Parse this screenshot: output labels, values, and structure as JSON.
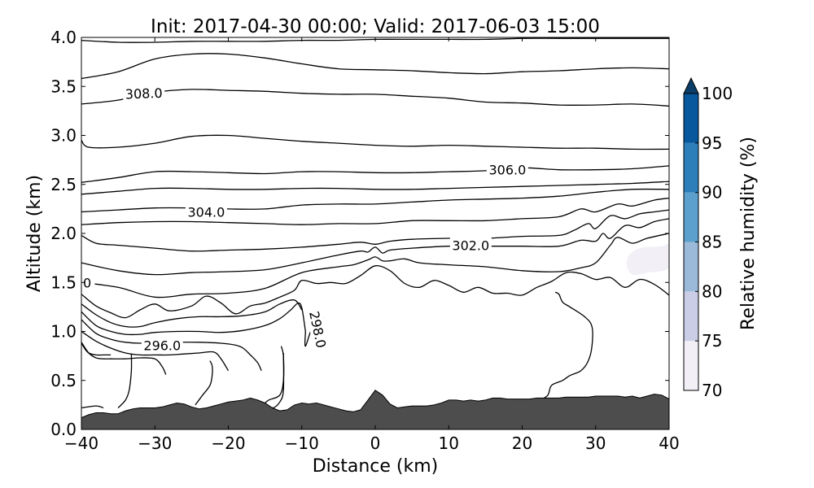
{
  "chart_data": {
    "type": "contour",
    "title": "Init: 2017-04-30 00:00; Valid: 2017-06-03 15:00",
    "xlabel": "Distance (km)",
    "ylabel": "Altitude (km)",
    "xlim": [
      -40,
      40
    ],
    "ylim": [
      0,
      4
    ],
    "x_ticks": [
      -40,
      -30,
      -20,
      -10,
      0,
      10,
      20,
      30,
      40
    ],
    "x_tick_labels": [
      "−40",
      "−30",
      "−20",
      "−10",
      "0",
      "10",
      "20",
      "30",
      "40"
    ],
    "y_ticks": [
      0,
      0.5,
      1,
      1.5,
      2,
      2.5,
      3,
      3.5,
      4
    ],
    "y_tick_labels": [
      "0.0",
      "0.5",
      "1.0",
      "1.5",
      "2.0",
      "2.5",
      "3.0",
      "3.5",
      "4.0"
    ],
    "colorbar": {
      "label": "Relative humidity (%)",
      "ticks": [
        "70",
        "75",
        "80",
        "85",
        "90",
        "95",
        "100"
      ],
      "levels": [
        70,
        75,
        80,
        85,
        90,
        95,
        100
      ],
      "colors": [
        "#f2eff6",
        "#cacde5",
        "#9bb9d9",
        "#5ca1cd",
        "#2d7fb9",
        "#08589e",
        "#0a3e68"
      ],
      "extend": "max"
    },
    "terrain": {
      "color": "#4d4d4d",
      "x": [
        -40,
        -39,
        -38,
        -37,
        -36,
        -35,
        -34,
        -33,
        -32,
        -31,
        -30,
        -29,
        -28,
        -27,
        -26,
        -25,
        -24,
        -23,
        -22,
        -21,
        -20,
        -19,
        -18,
        -17,
        -16,
        -15,
        -14,
        -13,
        -12,
        -11,
        -10,
        -9,
        -8,
        -7,
        -6,
        -5,
        -4,
        -3,
        -2,
        -1,
        0,
        1,
        2,
        3,
        4,
        5,
        6,
        7,
        8,
        9,
        10,
        11,
        12,
        13,
        14,
        15,
        16,
        17,
        18,
        19,
        20,
        21,
        22,
        23,
        24,
        25,
        26,
        27,
        28,
        29,
        30,
        31,
        32,
        33,
        34,
        35,
        36,
        37,
        38,
        39,
        40
      ],
      "y": [
        0.12,
        0.15,
        0.17,
        0.17,
        0.16,
        0.16,
        0.19,
        0.21,
        0.22,
        0.22,
        0.22,
        0.23,
        0.25,
        0.27,
        0.26,
        0.23,
        0.21,
        0.22,
        0.24,
        0.26,
        0.28,
        0.29,
        0.3,
        0.32,
        0.3,
        0.27,
        0.22,
        0.19,
        0.2,
        0.25,
        0.27,
        0.26,
        0.27,
        0.25,
        0.23,
        0.21,
        0.19,
        0.18,
        0.2,
        0.3,
        0.4,
        0.35,
        0.26,
        0.22,
        0.23,
        0.24,
        0.24,
        0.24,
        0.25,
        0.27,
        0.3,
        0.3,
        0.29,
        0.3,
        0.29,
        0.3,
        0.32,
        0.32,
        0.31,
        0.31,
        0.31,
        0.31,
        0.32,
        0.32,
        0.32,
        0.32,
        0.33,
        0.33,
        0.33,
        0.33,
        0.34,
        0.34,
        0.34,
        0.34,
        0.33,
        0.34,
        0.32,
        0.34,
        0.36,
        0.35,
        0.31
      ]
    },
    "moist_patch": {
      "level": 70,
      "x": [
        34.5,
        36,
        39,
        40,
        40,
        37,
        35,
        34.2
      ],
      "y": [
        1.78,
        1.85,
        1.87,
        1.88,
        1.65,
        1.6,
        1.58,
        1.68
      ]
    },
    "contours": [
      {
        "level": 310,
        "x": [
          -40,
          -35,
          -30,
          -25,
          -20,
          -15,
          -10,
          -5,
          0,
          5,
          10,
          15,
          20,
          25,
          30,
          35,
          40
        ],
        "y": [
          3.97,
          3.95,
          3.95,
          3.96,
          3.96,
          3.96,
          3.97,
          3.97,
          3.98,
          3.98,
          3.98,
          3.98,
          3.99,
          3.99,
          3.99,
          3.99,
          3.99
        ]
      },
      {
        "level": 309.5,
        "x": [
          -40,
          -35,
          -30,
          -25,
          -20,
          -15,
          -10,
          -5,
          0,
          5,
          10,
          15,
          20,
          25,
          30,
          35,
          40
        ],
        "y": [
          3.58,
          3.65,
          3.78,
          3.83,
          3.83,
          3.79,
          3.73,
          3.68,
          3.67,
          3.66,
          3.64,
          3.63,
          3.65,
          3.66,
          3.68,
          3.69,
          3.68
        ]
      },
      {
        "level": 308.0,
        "label": "308.0",
        "x": [
          -40,
          -35,
          -30,
          -25,
          -20,
          -15,
          -10,
          -5,
          0,
          5,
          10,
          15,
          20,
          25,
          30,
          35,
          40
        ],
        "y": [
          3.32,
          3.36,
          3.44,
          3.47,
          3.46,
          3.45,
          3.43,
          3.42,
          3.42,
          3.4,
          3.38,
          3.34,
          3.33,
          3.31,
          3.31,
          3.32,
          3.3
        ]
      },
      {
        "level": 307.5,
        "x": [
          -40,
          -39,
          -35,
          -30,
          -25,
          -20,
          -15,
          -10,
          -5,
          0,
          5,
          10,
          15,
          20,
          25,
          30,
          35,
          40
        ],
        "y": [
          2.95,
          2.88,
          2.88,
          2.92,
          2.99,
          3.0,
          2.97,
          2.94,
          2.92,
          2.9,
          2.89,
          2.9,
          2.89,
          2.88,
          2.87,
          2.87,
          2.86,
          2.86
        ]
      },
      {
        "level": 306.0,
        "label": "306.0",
        "x": [
          -40,
          -35,
          -30,
          -25,
          -20,
          -15,
          -10,
          -5,
          0,
          5,
          10,
          15,
          20,
          25,
          30,
          35,
          40
        ],
        "y": [
          2.52,
          2.57,
          2.63,
          2.63,
          2.62,
          2.61,
          2.63,
          2.63,
          2.62,
          2.62,
          2.63,
          2.64,
          2.67,
          2.65,
          2.65,
          2.66,
          2.69
        ]
      },
      {
        "level": 305.5,
        "x": [
          -40,
          -35,
          -30,
          -25,
          -20,
          -15,
          -10,
          -5,
          0,
          5,
          10,
          15,
          20,
          25,
          30,
          35,
          40
        ],
        "y": [
          2.4,
          2.43,
          2.46,
          2.46,
          2.45,
          2.45,
          2.46,
          2.46,
          2.45,
          2.45,
          2.46,
          2.47,
          2.48,
          2.49,
          2.5,
          2.51,
          2.53
        ]
      },
      {
        "level": 304.0,
        "label": "304.0",
        "x": [
          -40,
          -35,
          -30,
          -25,
          -20,
          -15,
          -10,
          -5,
          0,
          5,
          10,
          15,
          20,
          25,
          30,
          35,
          40
        ],
        "y": [
          2.22,
          2.24,
          2.26,
          2.26,
          2.25,
          2.25,
          2.29,
          2.3,
          2.3,
          2.32,
          2.34,
          2.35,
          2.36,
          2.38,
          2.42,
          2.45,
          2.45
        ]
      },
      {
        "level": 303.5,
        "x": [
          -40,
          -35,
          -30,
          -25,
          -20,
          -15,
          -10,
          -5,
          0,
          5,
          10,
          15,
          20,
          25,
          28,
          30,
          33,
          35,
          38,
          40
        ],
        "y": [
          2.09,
          2.11,
          2.12,
          2.12,
          2.11,
          2.1,
          2.09,
          2.1,
          2.1,
          2.13,
          2.13,
          2.13,
          2.15,
          2.17,
          2.25,
          2.22,
          2.3,
          2.28,
          2.34,
          2.36
        ]
      },
      {
        "level": 302.0,
        "label": "302.0",
        "x": [
          -40,
          -38,
          -35,
          -30,
          -25,
          -20,
          -15,
          -10,
          -5,
          -2,
          0,
          2,
          5,
          10,
          15,
          20,
          25,
          27,
          29,
          30,
          32,
          34,
          36,
          38,
          40
        ],
        "y": [
          1.98,
          1.9,
          1.88,
          1.85,
          1.82,
          1.83,
          1.84,
          1.86,
          1.89,
          1.91,
          1.89,
          1.92,
          1.94,
          1.95,
          1.95,
          1.97,
          1.98,
          2.03,
          2.1,
          2.05,
          2.18,
          2.15,
          2.2,
          2.22,
          2.24
        ]
      },
      {
        "level": 301.5,
        "x": [
          -40,
          -35,
          -30,
          -25,
          -20,
          -15,
          -10,
          -5,
          -2,
          -1,
          0,
          1,
          2,
          5,
          10,
          15,
          20,
          25,
          28,
          30,
          31,
          32,
          34,
          36,
          38,
          40
        ],
        "y": [
          1.7,
          1.62,
          1.58,
          1.6,
          1.61,
          1.63,
          1.7,
          1.78,
          1.82,
          1.81,
          1.86,
          1.8,
          1.83,
          1.85,
          1.87,
          1.87,
          1.87,
          1.87,
          1.93,
          1.92,
          2.0,
          1.95,
          2.08,
          2.06,
          2.12,
          2.15
        ]
      },
      {
        "level": 300.0,
        "label": "300.0",
        "x": [
          -40,
          -35,
          -30,
          -25,
          -20,
          -15,
          -10,
          -5,
          -3,
          -1,
          0,
          1,
          2,
          4,
          6,
          10,
          15,
          20,
          25,
          28,
          30,
          32,
          33,
          35,
          37,
          40
        ],
        "y": [
          1.5,
          1.45,
          1.35,
          1.38,
          1.39,
          1.44,
          1.6,
          1.66,
          1.68,
          1.73,
          1.76,
          1.72,
          1.72,
          1.74,
          1.7,
          1.68,
          1.66,
          1.62,
          1.61,
          1.65,
          1.7,
          1.88,
          1.96,
          1.9,
          1.95,
          2.0
        ]
      },
      {
        "level": 299.5,
        "x": [
          -40,
          -38,
          -36,
          -34,
          -32,
          -30,
          -28,
          -25,
          -23,
          -21,
          -19,
          -17,
          -15,
          -13,
          -11,
          -10,
          -8,
          -6,
          -4,
          -2,
          0,
          2,
          4,
          6,
          8,
          10,
          12,
          14,
          16,
          18,
          20,
          22,
          24,
          26,
          28,
          30,
          32,
          34,
          36,
          38,
          40
        ],
        "y": [
          1.38,
          1.26,
          1.19,
          1.14,
          1.22,
          1.28,
          1.21,
          1.26,
          1.36,
          1.29,
          1.18,
          1.26,
          1.29,
          1.35,
          1.42,
          1.52,
          1.49,
          1.5,
          1.49,
          1.57,
          1.67,
          1.62,
          1.49,
          1.45,
          1.52,
          1.47,
          1.4,
          1.45,
          1.39,
          1.39,
          1.37,
          1.45,
          1.51,
          1.6,
          1.59,
          1.53,
          1.55,
          1.45,
          1.53,
          1.48,
          1.37
        ]
      },
      {
        "level": 299.0,
        "x": [
          -40,
          -38,
          -36,
          -34,
          -32,
          -30,
          -27,
          -24,
          -21,
          -18,
          -15,
          -13,
          -11,
          -10
        ],
        "y": [
          1.28,
          1.17,
          1.09,
          1.05,
          1.05,
          1.09,
          1.13,
          1.15,
          1.15,
          1.16,
          1.2,
          1.28,
          1.32,
          1.22
        ]
      },
      {
        "level": 298.0,
        "label": "298.0",
        "x": [
          -40,
          -38,
          -36,
          -34,
          -32,
          -30,
          -27,
          -24,
          -21,
          -18,
          -15,
          -13,
          -11.5,
          -10.5,
          -10,
          -9.5
        ],
        "y": [
          1.2,
          1.06,
          1.0,
          0.97,
          0.97,
          0.99,
          1.0,
          1.0,
          0.99,
          1.01,
          1.06,
          1.13,
          1.22,
          1.29,
          1.24,
          1.0
        ]
      },
      {
        "level": 297.5,
        "x": [
          -40,
          -38,
          -36,
          -34,
          -32,
          -30,
          -27,
          -24,
          -21,
          -19,
          -18,
          -17,
          -16,
          -15.5
        ],
        "y": [
          1.12,
          0.98,
          0.92,
          0.89,
          0.88,
          0.89,
          0.89,
          0.89,
          0.88,
          0.86,
          0.83,
          0.76,
          0.68,
          0.6
        ]
      },
      {
        "level": 296.0,
        "label": "296.0",
        "x": [
          -40,
          -38,
          -36,
          -34,
          -32,
          -30,
          -28,
          -26,
          -24,
          -22,
          -21,
          -20
        ],
        "y": [
          1.0,
          0.9,
          0.83,
          0.78,
          0.76,
          0.76,
          0.76,
          0.77,
          0.78,
          0.79,
          0.72,
          0.6
        ]
      },
      {
        "level": 295.5,
        "x": [
          -40,
          -39,
          -38,
          -37,
          -36,
          -34,
          -32,
          -30,
          -29,
          -28.5
        ],
        "y": [
          0.89,
          0.78,
          0.73,
          0.72,
          0.72,
          0.72,
          0.73,
          0.72,
          0.64,
          0.56
        ]
      },
      {
        "level": 295.0,
        "x": [
          -40,
          -38,
          -37
        ],
        "y": [
          0.22,
          0.24,
          0.22
        ]
      },
      {
        "level": 295.0,
        "x": [
          -35,
          -34,
          -33.5,
          -33.2,
          -33.2
        ],
        "y": [
          0.22,
          0.3,
          0.4,
          0.6,
          0.77
        ]
      },
      {
        "level": 295.0,
        "x": [
          -24.5,
          -23.5,
          -22.5,
          -22.2,
          -22.2,
          -22.5
        ],
        "y": [
          0.25,
          0.35,
          0.45,
          0.55,
          0.65,
          0.7
        ]
      },
      {
        "level": 295.0,
        "x": [
          -15,
          -14.5,
          -13,
          -12.5,
          -12.5,
          -12.8
        ],
        "y": [
          0.27,
          0.3,
          0.35,
          0.5,
          0.75,
          0.85
        ]
      },
      {
        "level": 295.0,
        "x": [
          -40,
          -39.5,
          -39,
          -38,
          -37,
          -36
        ],
        "y": [
          0.88,
          0.82,
          0.78,
          0.76,
          0.76,
          0.76
        ]
      },
      {
        "level": 297.0,
        "x": [
          -17,
          -15.5,
          -14,
          -13,
          -12.5,
          -12.5
        ],
        "y": [
          0.3,
          0.27,
          0.22,
          0.28,
          0.4,
          0.78
        ]
      },
      {
        "level": 297.0,
        "x": [
          -9.5,
          -9.5,
          -8.5,
          -7
        ],
        "y": [
          1.0,
          0.85,
          1.05,
          1.14
        ]
      },
      {
        "level": 298.5,
        "x": [
          24.5,
          25,
          25.5,
          26.5,
          28.5,
          29.5,
          29.5,
          29,
          28,
          26.5,
          25.5,
          24,
          23.5,
          22.5
        ],
        "y": [
          1.4,
          1.38,
          1.3,
          1.25,
          1.15,
          1.05,
          0.85,
          0.7,
          0.6,
          0.55,
          0.5,
          0.45,
          0.35,
          0.3
        ]
      }
    ],
    "contour_labels": [
      {
        "text": "308.0",
        "x": -31.5,
        "y": 3.43,
        "angle": -2
      },
      {
        "text": "306.0",
        "x": 18,
        "y": 2.65,
        "angle": 0
      },
      {
        "text": "304.0",
        "x": -23,
        "y": 2.22,
        "angle": 0
      },
      {
        "text": "302.0",
        "x": 13,
        "y": 1.88,
        "angle": 0
      },
      {
        "text": ".0",
        "x": -39.5,
        "y": 1.5,
        "angle": 0
      },
      {
        "text": "298.0",
        "x": -7.8,
        "y": 1.02,
        "angle": 78
      },
      {
        "text": "296.0",
        "x": -29,
        "y": 0.86,
        "angle": 0
      }
    ]
  }
}
